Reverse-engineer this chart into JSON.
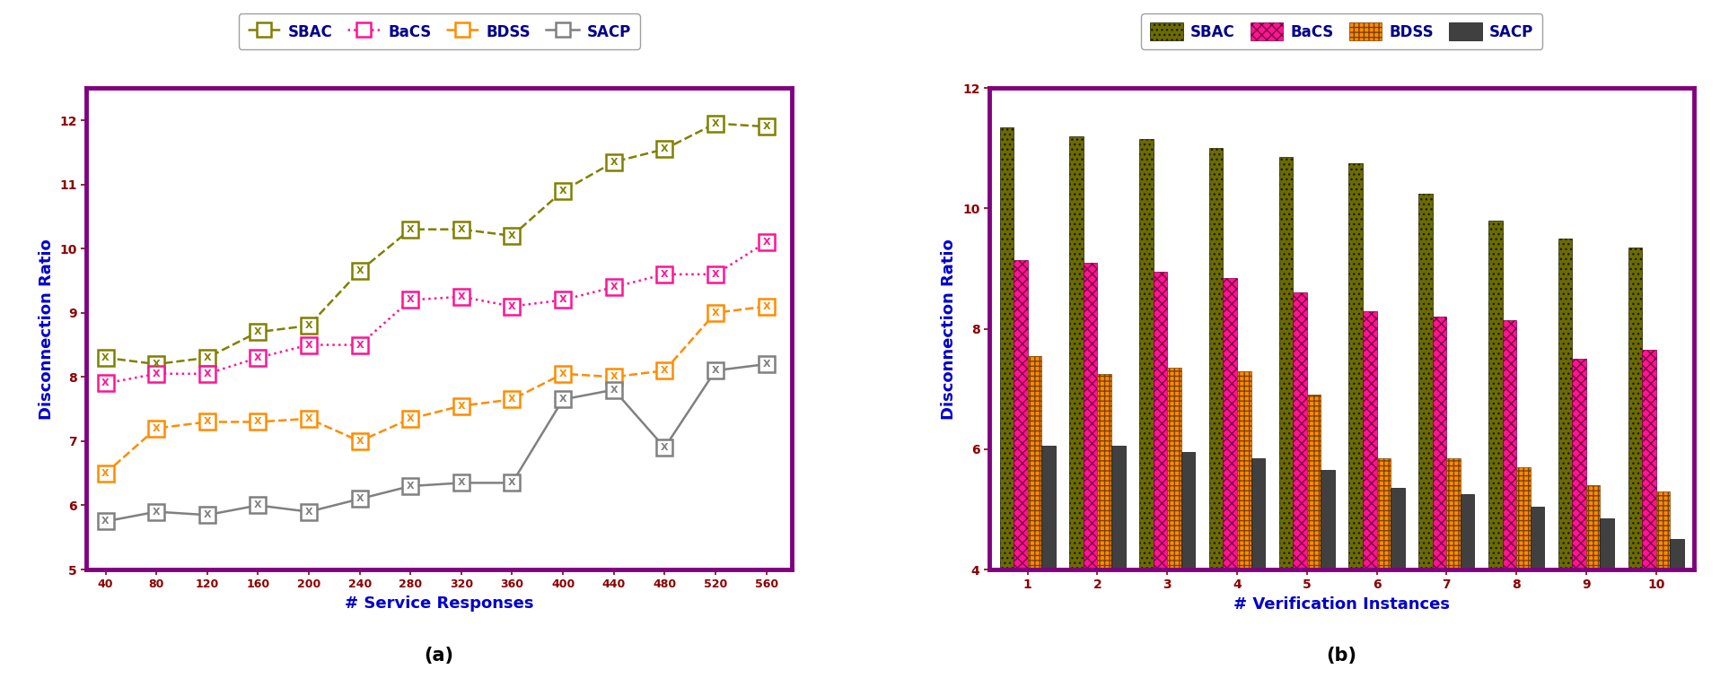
{
  "chart_a": {
    "x": [
      40,
      80,
      120,
      160,
      200,
      240,
      280,
      320,
      360,
      400,
      440,
      480,
      520,
      560
    ],
    "SBAC": [
      8.3,
      8.2,
      8.3,
      8.7,
      8.8,
      9.65,
      10.3,
      10.3,
      10.2,
      10.9,
      11.35,
      11.55,
      11.95,
      11.9
    ],
    "BaCS": [
      7.9,
      8.05,
      8.05,
      8.3,
      8.5,
      8.5,
      9.2,
      9.25,
      9.1,
      9.2,
      9.4,
      9.6,
      9.6,
      10.1
    ],
    "BDSS": [
      6.5,
      7.2,
      7.3,
      7.3,
      7.35,
      7.0,
      7.35,
      7.55,
      7.65,
      8.05,
      8.0,
      8.1,
      9.0,
      9.1
    ],
    "SACP": [
      5.75,
      5.9,
      5.85,
      6.0,
      5.9,
      6.1,
      6.3,
      6.35,
      6.35,
      7.65,
      7.8,
      6.9,
      8.1,
      8.2
    ],
    "SBAC_color": "#808000",
    "BaCS_color": "#FF1493",
    "BDSS_color": "#FF8C00",
    "SACP_color": "#808080",
    "xlabel": "# Service Responses",
    "ylabel": "Disconnection Ratio",
    "ylim": [
      5,
      12.5
    ],
    "xlim": [
      25,
      580
    ],
    "yticks": [
      5,
      6,
      7,
      8,
      9,
      10,
      11,
      12
    ],
    "label_a": "(a)"
  },
  "chart_b": {
    "x": [
      1,
      2,
      3,
      4,
      5,
      6,
      7,
      8,
      9,
      10
    ],
    "SBAC": [
      11.35,
      11.2,
      11.15,
      11.0,
      10.85,
      10.75,
      10.25,
      9.8,
      9.5,
      9.35
    ],
    "BaCS": [
      9.15,
      9.1,
      8.95,
      8.85,
      8.6,
      8.3,
      8.2,
      8.15,
      7.5,
      7.65
    ],
    "BDSS": [
      7.55,
      7.25,
      7.35,
      7.3,
      6.9,
      5.85,
      5.85,
      5.7,
      5.4,
      5.3
    ],
    "SACP": [
      6.05,
      6.05,
      5.95,
      5.85,
      5.65,
      5.35,
      5.25,
      5.05,
      4.85,
      4.5
    ],
    "SBAC_color": "#6B6B00",
    "BaCS_color": "#FF1493",
    "BDSS_color": "#FF8C00",
    "SACP_color": "#404040",
    "xlabel": "# Verification Instances",
    "ylabel": "Disconnection Ratio",
    "ylim": [
      4,
      12
    ],
    "yticks": [
      4,
      6,
      8,
      10,
      12
    ],
    "label_b": "(b)"
  },
  "border_color": "#800080",
  "xlabel_color": "#0000CD",
  "ylabel_color": "#0000CD",
  "tick_color": "#8B0000",
  "legend_text_color": "#00008B"
}
